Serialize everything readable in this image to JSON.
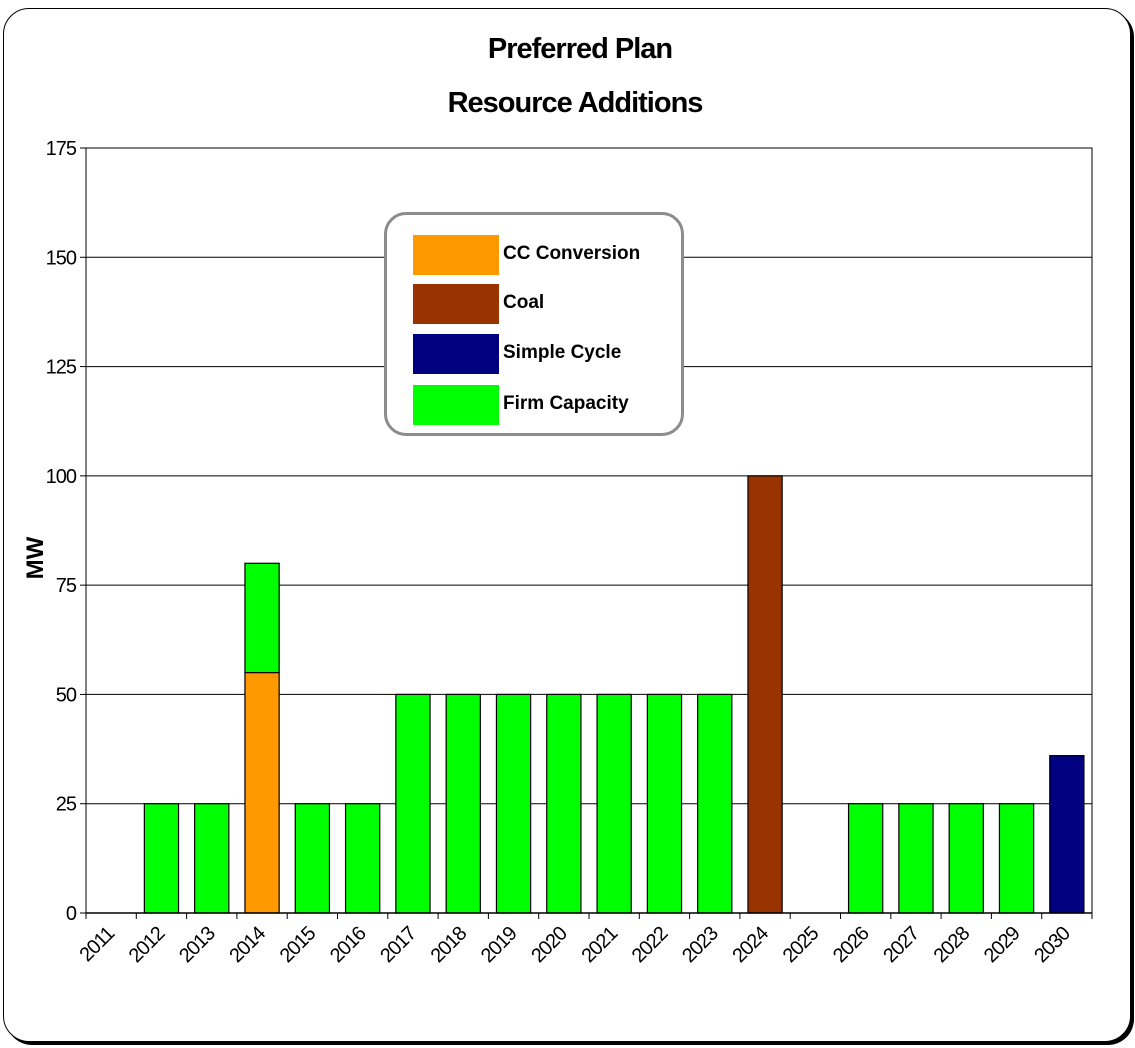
{
  "chart_data": {
    "type": "bar",
    "stacked": true,
    "title": [
      "Preferred Plan",
      "Resource Additions"
    ],
    "ylabel": "MW",
    "xlabel": "",
    "ylim": [
      0,
      175
    ],
    "yticks": [
      0,
      25,
      50,
      75,
      100,
      125,
      150,
      175
    ],
    "grid": true,
    "legend_position": "top-center",
    "categories": [
      "2011",
      "2012",
      "2013",
      "2014",
      "2015",
      "2016",
      "2017",
      "2018",
      "2019",
      "2020",
      "2021",
      "2022",
      "2023",
      "2024",
      "2025",
      "2026",
      "2027",
      "2028",
      "2029",
      "2030"
    ],
    "series": [
      {
        "name": "CC Conversion",
        "color": "#ff9900",
        "values": [
          0,
          0,
          0,
          55,
          0,
          0,
          0,
          0,
          0,
          0,
          0,
          0,
          0,
          0,
          0,
          0,
          0,
          0,
          0,
          0
        ]
      },
      {
        "name": "Coal",
        "color": "#993300",
        "values": [
          0,
          0,
          0,
          0,
          0,
          0,
          0,
          0,
          0,
          0,
          0,
          0,
          0,
          100,
          0,
          0,
          0,
          0,
          0,
          0
        ]
      },
      {
        "name": "Simple Cycle",
        "color": "#000080",
        "values": [
          0,
          0,
          0,
          0,
          0,
          0,
          0,
          0,
          0,
          0,
          0,
          0,
          0,
          0,
          0,
          0,
          0,
          0,
          0,
          36
        ]
      },
      {
        "name": "Firm Capacity",
        "color": "#00ff00",
        "values": [
          0,
          25,
          25,
          25,
          25,
          25,
          50,
          50,
          50,
          50,
          50,
          50,
          50,
          0,
          0,
          25,
          25,
          25,
          25,
          0
        ]
      }
    ]
  }
}
